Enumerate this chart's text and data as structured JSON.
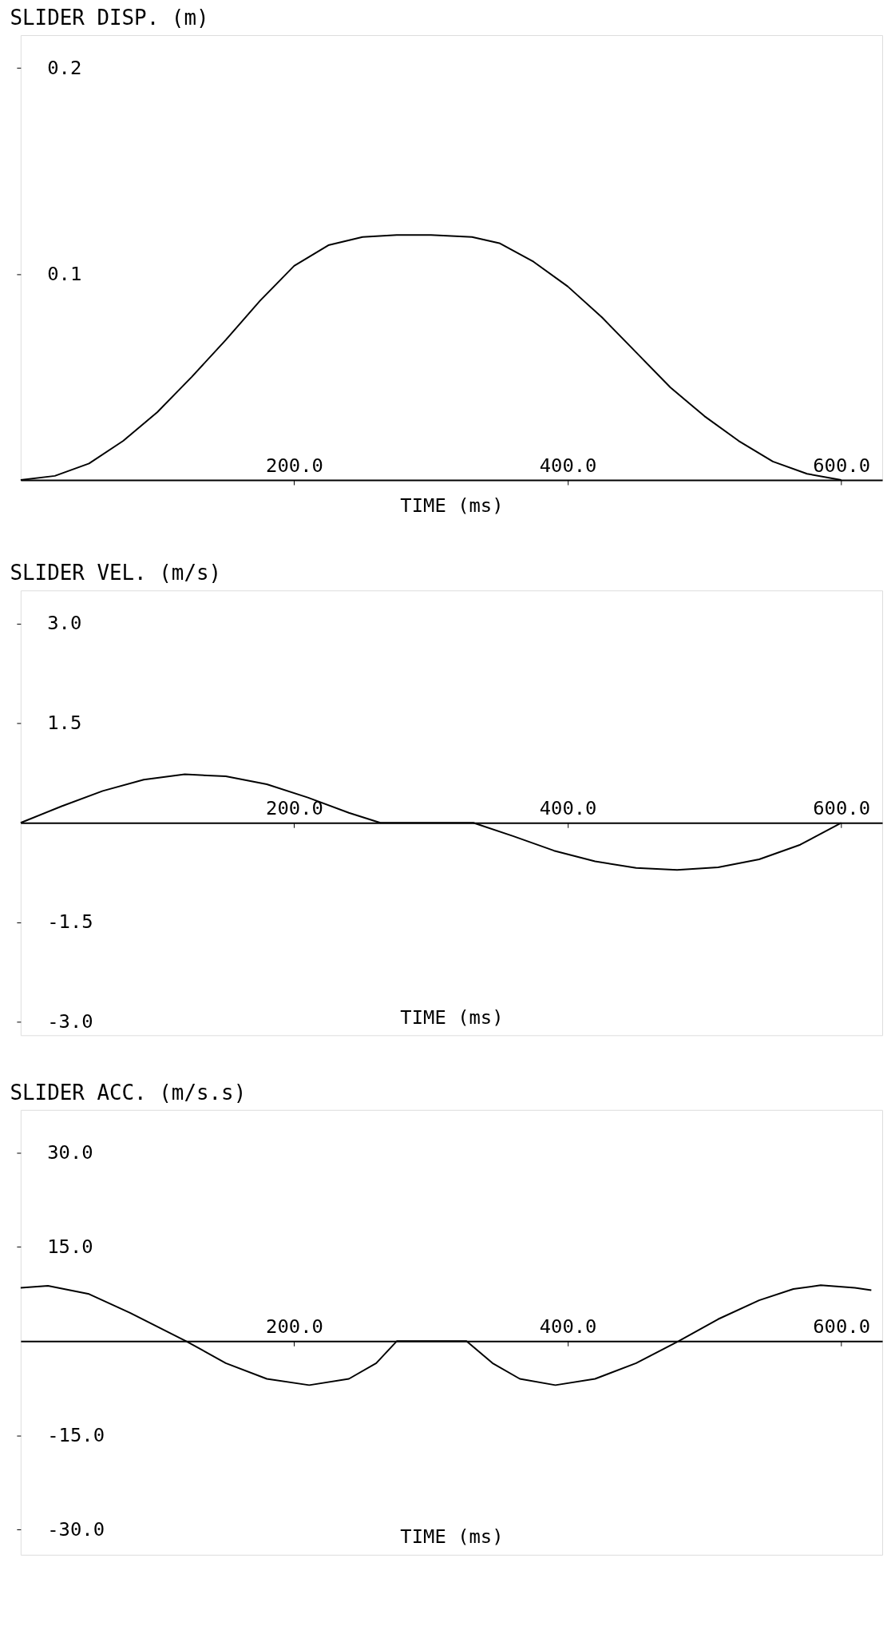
{
  "chart_data": [
    {
      "type": "line",
      "title": "SLIDER DISP. (m)",
      "xlabel": "TIME (ms)",
      "color": "#000000",
      "x": [
        0,
        25,
        50,
        75,
        100,
        125,
        150,
        175,
        200,
        225,
        250,
        275,
        300,
        330,
        350,
        375,
        400,
        425,
        450,
        475,
        500,
        525,
        550,
        575,
        600
      ],
      "values": [
        0,
        0.002,
        0.008,
        0.019,
        0.033,
        0.05,
        0.068,
        0.087,
        0.104,
        0.114,
        0.118,
        0.119,
        0.119,
        0.118,
        0.115,
        0.106,
        0.094,
        0.079,
        0.062,
        0.045,
        0.031,
        0.019,
        0.009,
        0.003,
        0
      ],
      "xlim": [
        0,
        630
      ],
      "ylim": [
        0,
        0.216
      ],
      "xticks": [
        {
          "value": 200,
          "label": "200.0"
        },
        {
          "value": 400,
          "label": "400.0"
        },
        {
          "value": 600,
          "label": "600.0"
        }
      ],
      "yticks": [
        0.1,
        0.2
      ]
    },
    {
      "type": "line",
      "title": "SLIDER VEL. (m/s)",
      "xlabel": "TIME (ms)",
      "color": "#000000",
      "x": [
        0,
        30,
        60,
        90,
        120,
        150,
        180,
        210,
        240,
        263,
        300,
        331,
        360,
        390,
        420,
        450,
        480,
        510,
        540,
        570,
        600
      ],
      "values": [
        0,
        0.25,
        0.48,
        0.65,
        0.73,
        0.7,
        0.58,
        0.38,
        0.15,
        0,
        0,
        0,
        -0.2,
        -0.42,
        -0.58,
        -0.68,
        -0.71,
        -0.67,
        -0.55,
        -0.33,
        0
      ],
      "xlim": [
        0,
        630
      ],
      "ylim": [
        -3.2,
        3.5
      ],
      "xticks": [
        {
          "value": 200,
          "label": "200.0"
        },
        {
          "value": 400,
          "label": "400.0"
        },
        {
          "value": 600,
          "label": "600.0"
        }
      ],
      "yticks": [
        {
          "value": 3,
          "label": "3.0"
        },
        {
          "value": 1.5,
          "label": "1.5"
        },
        {
          "value": -1.5,
          "label": "-1.5"
        },
        {
          "value": -3,
          "label": "-3.0"
        }
      ]
    },
    {
      "type": "line",
      "title": "SLIDER ACC. (m/s.s)",
      "xlabel": "TIME (ms)",
      "color": "#000000",
      "x": [
        0,
        20,
        50,
        80,
        121,
        150,
        180,
        211,
        240,
        260,
        275,
        326,
        345,
        365,
        391,
        420,
        450,
        481,
        510,
        540,
        565,
        585,
        610,
        622
      ],
      "values": [
        8.5,
        8.8,
        7.5,
        4.5,
        0,
        -3.5,
        -6,
        -7,
        -6,
        -3.5,
        0,
        0,
        -3.5,
        -6,
        -7,
        -6,
        -3.5,
        0,
        3.5,
        6.5,
        8.3,
        8.9,
        8.5,
        8.1
      ],
      "xlim": [
        0,
        630
      ],
      "ylim": [
        -34,
        36.8
      ],
      "xticks": [
        {
          "value": 200,
          "label": "200.0"
        },
        {
          "value": 400,
          "label": "400.0"
        },
        {
          "value": 600,
          "label": "600.0"
        }
      ],
      "yticks": [
        {
          "value": 30,
          "label": "30.0"
        },
        {
          "value": 15,
          "label": "15.0"
        },
        {
          "value": -15,
          "label": "-15.0"
        },
        {
          "value": -30,
          "label": "-30.0"
        }
      ]
    }
  ]
}
